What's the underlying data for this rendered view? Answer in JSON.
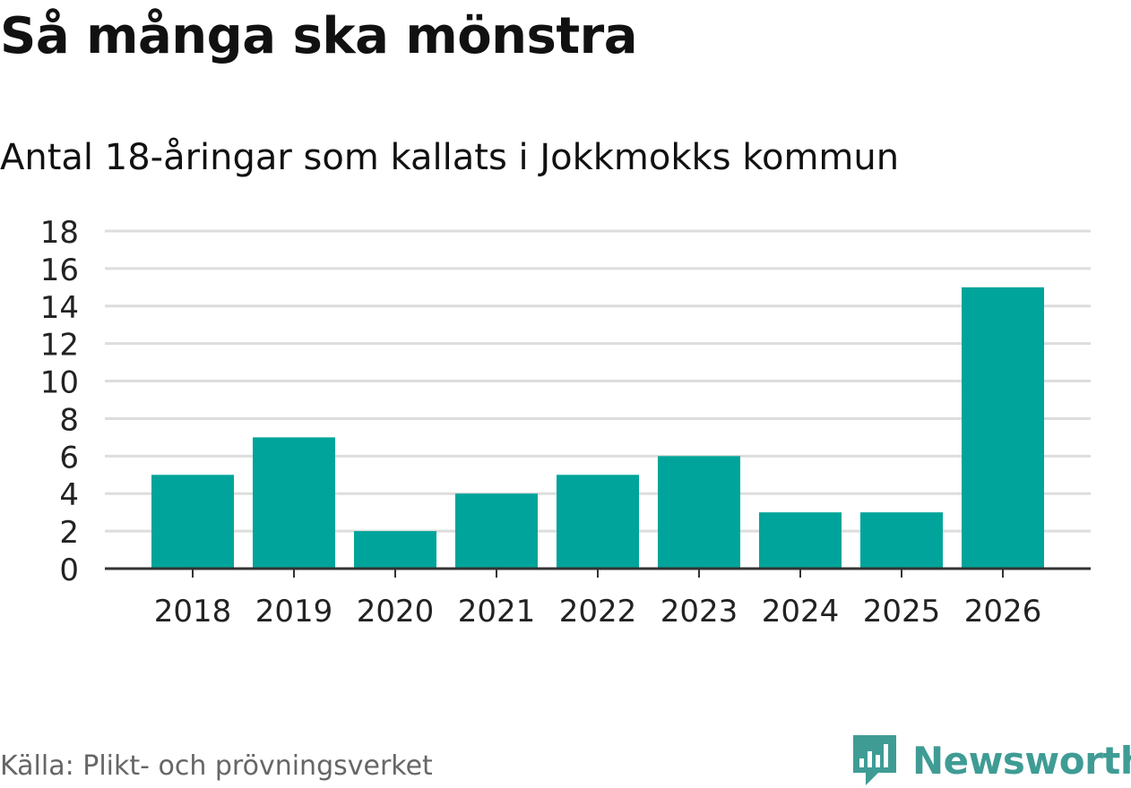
{
  "header": {
    "title": "Så många ska mönstra",
    "subtitle": "Antal 18-åringar som kallats i Jokkmokks kommun"
  },
  "footer": {
    "source": "Källa: Plikt- och prövningsverket",
    "brand": "Newsworthy"
  },
  "colors": {
    "bar": "#00a49a",
    "grid": "#dddddd",
    "axis": "#333333",
    "brand": "#3f9c95"
  },
  "chart_data": {
    "type": "bar",
    "categories": [
      "2018",
      "2019",
      "2020",
      "2021",
      "2022",
      "2023",
      "2024",
      "2025",
      "2026"
    ],
    "values": [
      5,
      7,
      2,
      4,
      5,
      6,
      3,
      3,
      15
    ],
    "ylim": [
      0,
      18
    ],
    "yticks": [
      0,
      2,
      4,
      6,
      8,
      10,
      12,
      14,
      16,
      18
    ],
    "grid": true,
    "legend": "none"
  }
}
